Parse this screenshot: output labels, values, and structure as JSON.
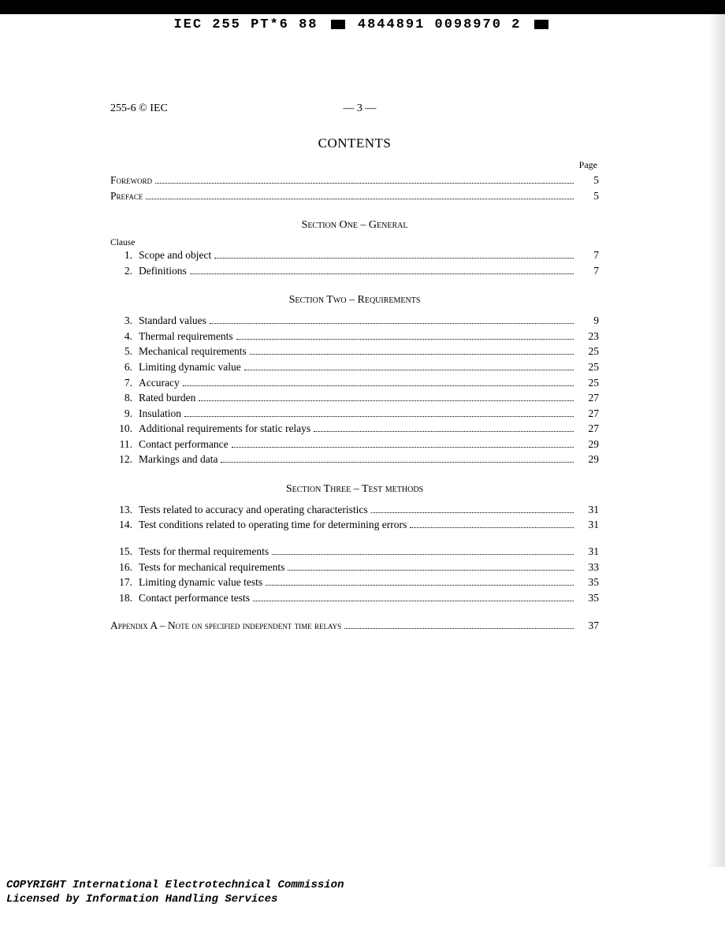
{
  "header_code": {
    "left": "IEC 255 PT*6 88",
    "mid": "4844891 0098970 2"
  },
  "doc_id": "255-6 © IEC",
  "page_number_display": "— 3 —",
  "title": "CONTENTS",
  "page_label": "Page",
  "clause_label": "Clause",
  "front_matter": [
    {
      "label": "Foreword",
      "page": "5"
    },
    {
      "label": "Preface",
      "page": "5"
    }
  ],
  "sections": [
    {
      "heading": "Section One – General",
      "items": [
        {
          "num": "1.",
          "label": "Scope and object",
          "page": "7"
        },
        {
          "num": "2.",
          "label": "Definitions",
          "page": "7"
        }
      ]
    },
    {
      "heading": "Section Two – Requirements",
      "items": [
        {
          "num": "3.",
          "label": "Standard values",
          "page": "9"
        },
        {
          "num": "4.",
          "label": "Thermal requirements",
          "page": "23"
        },
        {
          "num": "5.",
          "label": "Mechanical requirements",
          "page": "25"
        },
        {
          "num": "6.",
          "label": "Limiting dynamic value",
          "page": "25"
        },
        {
          "num": "7.",
          "label": "Accuracy",
          "page": "25"
        },
        {
          "num": "8.",
          "label": "Rated burden",
          "page": "27"
        },
        {
          "num": "9.",
          "label": "Insulation",
          "page": "27"
        },
        {
          "num": "10.",
          "label": "Additional requirements for static relays",
          "page": "27"
        },
        {
          "num": "11.",
          "label": "Contact performance",
          "page": "29"
        },
        {
          "num": "12.",
          "label": "Markings and data",
          "page": "29"
        }
      ]
    },
    {
      "heading": "Section Three – Test methods",
      "groups": [
        [
          {
            "num": "13.",
            "label": "Tests related to accuracy and operating characteristics",
            "page": "31"
          },
          {
            "num": "14.",
            "label": "Test conditions related to operating time for determining errors",
            "page": "31"
          }
        ],
        [
          {
            "num": "15.",
            "label": "Tests for thermal requirements",
            "page": "31"
          },
          {
            "num": "16.",
            "label": "Tests for mechanical requirements",
            "page": "33"
          },
          {
            "num": "17.",
            "label": "Limiting dynamic value tests",
            "page": "35"
          },
          {
            "num": "18.",
            "label": "Contact performance tests",
            "page": "35"
          }
        ]
      ]
    }
  ],
  "appendix": {
    "label": "Appendix A – Note on specified independent time relays",
    "page": "37"
  },
  "footer": {
    "line1": "COPYRIGHT International Electrotechnical Commission",
    "line2": "Licensed by Information Handling Services"
  }
}
